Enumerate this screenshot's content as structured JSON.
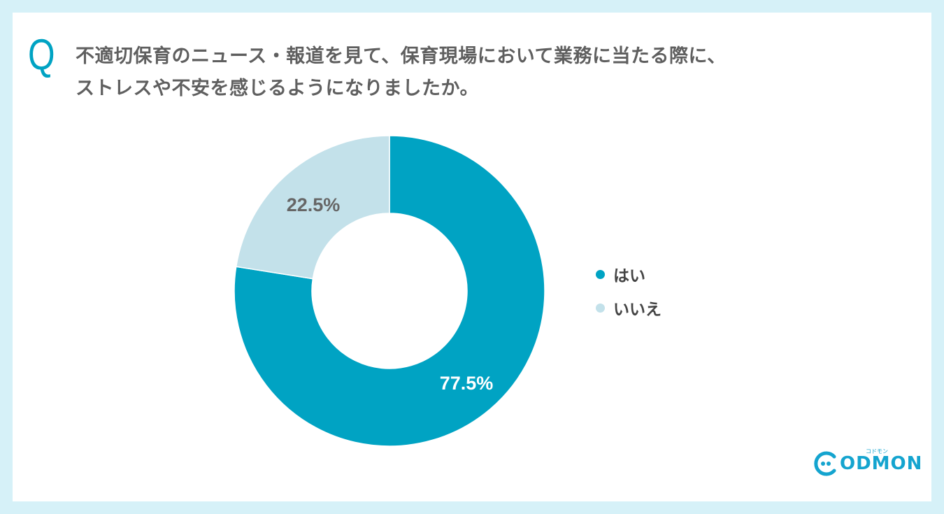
{
  "colors": {
    "background": "#d6f1f8",
    "card": "#ffffff",
    "accent": "#00a3c3",
    "yes": "#00a3c3",
    "no": "#c3e1ea",
    "title_text": "#5f5f5f",
    "legend_text": "#444444",
    "logo": "#14a4cf"
  },
  "question": {
    "mark": "Q",
    "lines": [
      "不適切保育のニュース・報道を見て、保育現場において業務に当たる際に、",
      "ストレスや不安を感じるようになりましたか。"
    ]
  },
  "legend": {
    "items": [
      {
        "label": "はい",
        "color": "#00a3c3"
      },
      {
        "label": "いいえ",
        "color": "#c3e1ea"
      }
    ]
  },
  "slices": [
    {
      "label": "はい",
      "value_text": "77.5%"
    },
    {
      "label": "いいえ",
      "value_text": "22.5%"
    }
  ],
  "logo": {
    "text": "ODMON",
    "sub": "コドモン"
  },
  "chart_data": {
    "type": "pie",
    "subtype": "donut",
    "title": "不適切保育のニュース・報道を見て、保育現場において業務に当たる際に、ストレスや不安を感じるようになりましたか。",
    "categories": [
      "はい",
      "いいえ"
    ],
    "values": [
      77.5,
      22.5
    ],
    "unit": "%",
    "colors": [
      "#00a3c3",
      "#c3e1ea"
    ],
    "legend_position": "right",
    "start_angle": "12 o'clock, clockwise"
  }
}
